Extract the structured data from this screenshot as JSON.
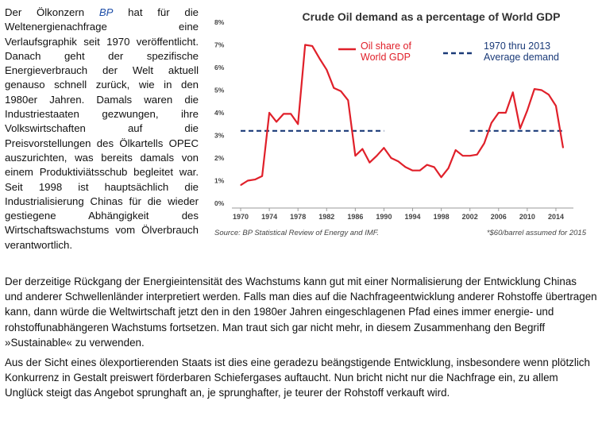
{
  "article": {
    "side_text_pre": "Der Ölkonzern ",
    "side_text_bp": "BP",
    "side_text_post": " hat für die Weltenergienachfrage eine Verlaufsgraphik seit 1970 veröffentlicht. Danach geht der spezifische Energieverbrauch der Welt aktuell genauso schnell zurück, wie in den 1980er Jahren. Damals waren die Industriestaaten gezwungen, ihre Volkswirtschaften auf die Preisvorstellungen des Ölkartells OPEC auszurichten, was bereits damals von einem Produktiviätsschub begleitet war. Seit 1998 ist hauptsächlich die Industrialisierung Chinas für die wieder gestiegene Abhängigkeit des Wirtschaftswachstums vom Ölverbrauch verantwortlich.",
    "paragraph_1": "Der derzeitige Rückgang der Energieintensität des Wachstums kann gut mit einer Normalisierung der Entwicklung Chinas und anderer Schwellenländer interpretiert werden. Falls man dies auf die Nachfrageentwicklung anderer Rohstoffe übertragen kann, dann würde die Weltwirtschaft jetzt den in den 1980er Jahren eingeschlagenen Pfad eines immer energie- und rohstoffunabhängeren Wachstums fortsetzen. Man traut sich gar nicht mehr, in diesem Zusammenhang den Begriff »Sustainable« zu verwenden.",
    "paragraph_2": "Aus der Sicht eines ölexportierenden Staats ist dies eine geradezu beängstigende Entwicklung, insbesondere wenn plötzlich Konkurrenz in Gestalt preiswert förderbaren Schiefergases auftaucht. Nun bricht nicht nur die Nachfrage ein, zu allem Unglück steigt das Angebot sprunghaft an, je sprunghafter, je teurer der Rohstoff verkauft wird."
  },
  "chart_data": {
    "type": "line",
    "title": "Crude Oil demand as a percentage of World GDP",
    "xlabel": "",
    "ylabel": "",
    "xlim": [
      1969,
      2016
    ],
    "ylim": [
      0,
      8
    ],
    "y_ticks": [
      0,
      1,
      2,
      3,
      4,
      5,
      6,
      7,
      8
    ],
    "y_tick_labels": [
      "0%",
      "1%",
      "2%",
      "3%",
      "4%",
      "5%",
      "6%",
      "7%",
      "8%"
    ],
    "x_ticks": [
      1970,
      1974,
      1978,
      1982,
      1986,
      1990,
      1994,
      1998,
      2002,
      2006,
      2010,
      2014
    ],
    "x_tick_labels": [
      "1970",
      "1974",
      "1978",
      "1982",
      "1986",
      "1990",
      "1994",
      "1998",
      "2002",
      "2006",
      "2010",
      "2014"
    ],
    "grid": false,
    "legend_position": "top-right",
    "series": [
      {
        "name": "Oil share of World GDP",
        "name_line1": "Oil share of",
        "name_line2": "World GDP",
        "color": "#e0202a",
        "x": [
          1970,
          1971,
          1972,
          1973,
          1974,
          1975,
          1976,
          1977,
          1978,
          1979,
          1980,
          1981,
          1982,
          1983,
          1984,
          1985,
          1986,
          1987,
          1988,
          1989,
          1990,
          1991,
          1992,
          1993,
          1994,
          1995,
          1996,
          1997,
          1998,
          1999,
          2000,
          2001,
          2002,
          2003,
          2004,
          2005,
          2006,
          2007,
          2008,
          2009,
          2010,
          2011,
          2012,
          2013,
          2014,
          2015
        ],
        "values": [
          0.8,
          1.0,
          1.05,
          1.2,
          4.0,
          3.6,
          3.95,
          3.95,
          3.5,
          7.0,
          6.95,
          6.4,
          5.9,
          5.1,
          4.95,
          4.55,
          2.1,
          2.4,
          1.8,
          2.1,
          2.45,
          2.0,
          1.85,
          1.6,
          1.45,
          1.45,
          1.7,
          1.6,
          1.15,
          1.55,
          2.35,
          2.1,
          2.1,
          2.15,
          2.65,
          3.55,
          4.0,
          4.0,
          4.9,
          3.3,
          4.1,
          5.05,
          5.0,
          4.8,
          4.3,
          2.45
        ]
      },
      {
        "name": "1970 thru 2013 Average demand",
        "name_line1": "1970 thru 2013",
        "name_line2": "Average demand",
        "color": "#1a3a78",
        "value": 3.2,
        "segments": [
          [
            1970,
            1990
          ],
          [
            2002,
            2015
          ]
        ]
      }
    ],
    "source_note": "Source: BP Statistical Review of Energy and IMF.",
    "footnote": "*$60/barrel assumed for 2015"
  }
}
